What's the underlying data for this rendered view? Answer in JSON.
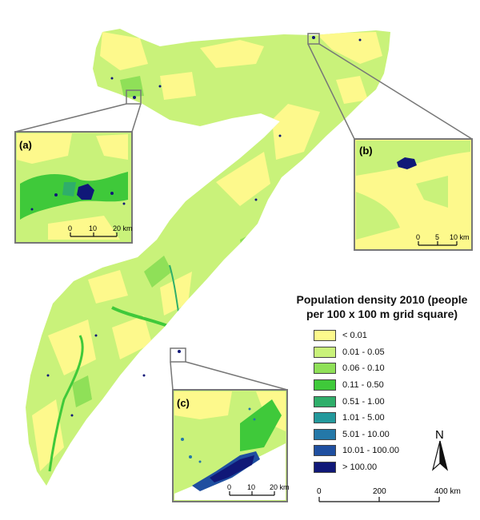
{
  "legend": {
    "title_line1": "Population density 2010 (people",
    "title_line2": "per 100 x 100 m grid square)",
    "items": [
      {
        "label": "< 0.01",
        "color": "#fdf98c"
      },
      {
        "label": "0.01 - 0.05",
        "color": "#c9f27a"
      },
      {
        "label": "0.06 - 0.10",
        "color": "#8fe058"
      },
      {
        "label": "0.11 - 0.50",
        "color": "#3fc93a"
      },
      {
        "label": "0.51 - 1.00",
        "color": "#2fae6a"
      },
      {
        "label": "1.01 - 5.00",
        "color": "#23999c"
      },
      {
        "label": "5.01 - 10.00",
        "color": "#2478a8"
      },
      {
        "label": "10.01 - 100.00",
        "color": "#1f4fa0"
      },
      {
        "label": "> 100.00",
        "color": "#101878"
      }
    ]
  },
  "insets": [
    {
      "label": "(a)",
      "scale": [
        "0",
        "10",
        "20 km"
      ]
    },
    {
      "label": "(b)",
      "scale": [
        "0",
        "5",
        "10 km"
      ]
    },
    {
      "label": "(c)",
      "scale": [
        "0",
        "10",
        "20 km"
      ]
    }
  ],
  "scalebar": {
    "ticks": [
      "0",
      "200",
      "400 km"
    ]
  },
  "north": "N"
}
